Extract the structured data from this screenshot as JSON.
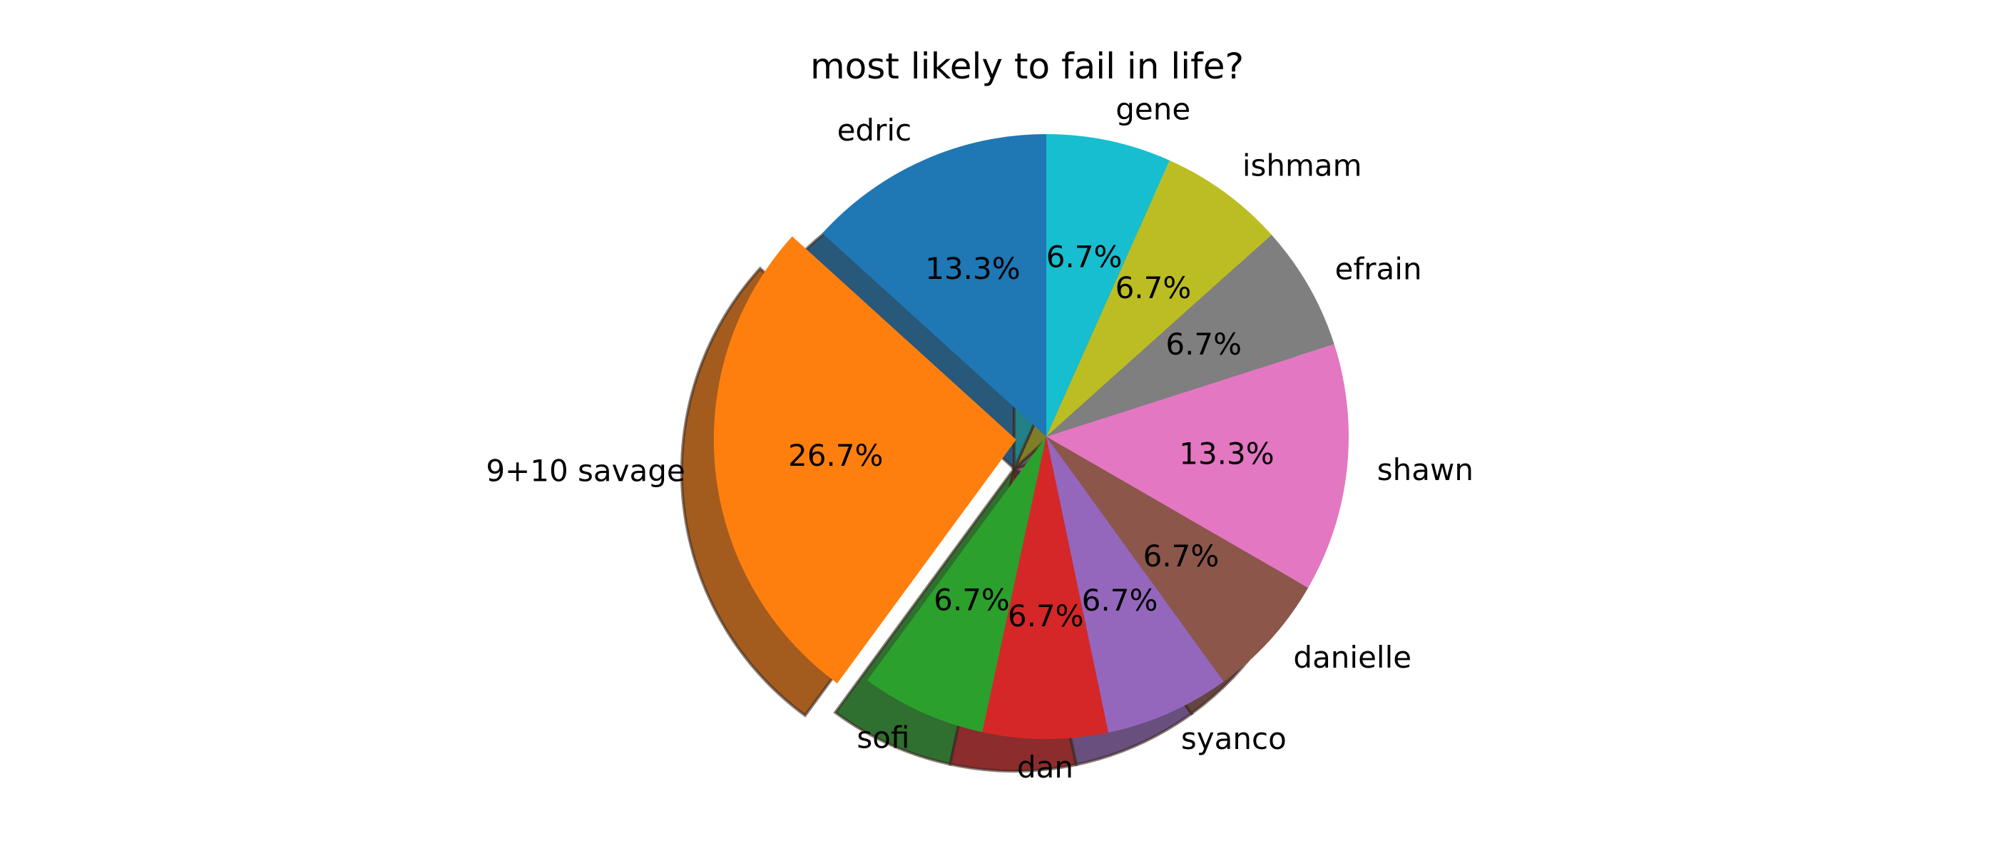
{
  "chart_data": {
    "type": "pie",
    "title": "most likely to fail in life?",
    "start_angle_deg": 90,
    "direction": "counterclockwise",
    "shadow": true,
    "slices": [
      {
        "label": "edric",
        "value": 13.3,
        "pct_label": "13.3%",
        "color": "#1f77b4",
        "explode": 0
      },
      {
        "label": "9+10 savage",
        "value": 26.7,
        "pct_label": "26.7%",
        "color": "#ff7f0e",
        "explode": 0.1
      },
      {
        "label": "sofi",
        "value": 6.7,
        "pct_label": "6.7%",
        "color": "#2ca02c",
        "explode": 0
      },
      {
        "label": "dan",
        "value": 6.7,
        "pct_label": "6.7%",
        "color": "#d62728",
        "explode": 0
      },
      {
        "label": "syanco",
        "value": 6.7,
        "pct_label": "6.7%",
        "color": "#9467bd",
        "explode": 0
      },
      {
        "label": "danielle",
        "value": 6.7,
        "pct_label": "6.7%",
        "color": "#8c564b",
        "explode": 0
      },
      {
        "label": "shawn",
        "value": 13.3,
        "pct_label": "13.3%",
        "color": "#e377c2",
        "explode": 0
      },
      {
        "label": "efrain",
        "value": 6.7,
        "pct_label": "6.7%",
        "color": "#7f7f7f",
        "explode": 0
      },
      {
        "label": "ishmam",
        "value": 6.7,
        "pct_label": "6.7%",
        "color": "#bcbd22",
        "explode": 0
      },
      {
        "label": "gene",
        "value": 6.7,
        "pct_label": "6.7%",
        "color": "#17becf",
        "explode": 0
      }
    ]
  }
}
